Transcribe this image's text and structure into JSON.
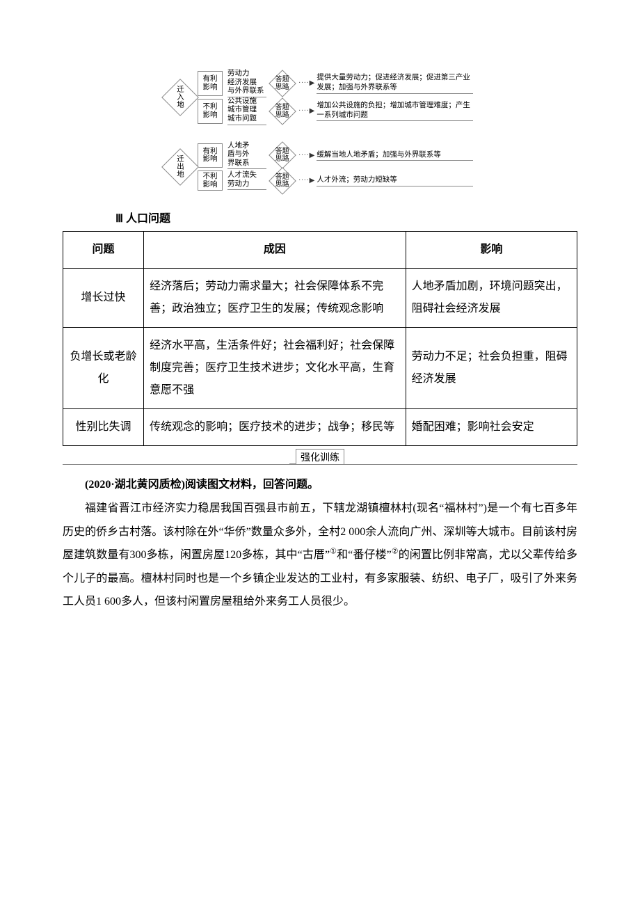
{
  "diagrams": {
    "group1": {
      "diamond": "迁\n入\n地",
      "top": {
        "influenceLabel": "有利\n影响",
        "mid": "劳动力\n经济发展\n与外界联系",
        "thinker": "答题\n思路",
        "result": "提供大量劳动力；促进经济发展；促进第三产业发展；加强与外界联系等"
      },
      "bottom": {
        "influenceLabel": "不利\n影响",
        "mid": "公共设施\n城市管理\n城市问题",
        "thinker": "答题\n思路",
        "result": "增加公共设施的负担；增加城市管理难度；产生一系列城市问题"
      }
    },
    "group2": {
      "diamond": "迁\n出\n地",
      "top": {
        "influenceLabel": "有利\n影响",
        "mid": "人地矛\n盾与外\n界联系",
        "thinker": "答题\n思路",
        "result": "缓解当地人地矛盾；加强与外界联系等"
      },
      "bottom": {
        "influenceLabel": "不利\n影响",
        "mid": "人才流失\n劳动力",
        "thinker": "答题\n思路",
        "result": "人才外流；劳动力短缺等"
      }
    },
    "arrow_dots": "· · · · ·",
    "arrowhead": "▶"
  },
  "section3": {
    "heading": "Ⅲ 人口问题",
    "table": {
      "headers": [
        "问题",
        "成因",
        "影响"
      ],
      "rows": [
        {
          "c1": "增长过快",
          "c2": "经济落后；劳动力需求量大；社会保障体系不完善；政治独立；医疗卫生的发展；传统观念影响",
          "c3": "人地矛盾加剧，环境问题突出，阻碍社会经济发展"
        },
        {
          "c1": "负增长或老龄化",
          "c2": "经济水平高，生活条件好；社会福利好；社会保障制度完善；医疗卫生技术进步；文化水平高，生育意愿不强",
          "c3": "劳动力不足；社会负担重，阻碍经济发展"
        },
        {
          "c1": "性别比失调",
          "c2": "传统观念的影响；医疗技术的进步；战争；移民等",
          "c3": "婚配困难；影响社会安定"
        }
      ]
    }
  },
  "tabMarker": "强化训练",
  "passage": {
    "lead": "(2020·湖北黄冈质检)阅读图文材料，回答问题。",
    "body_part1": "福建省晋江市经济实力稳居我国百强县市前五，下辖龙湖镇檀林村(现名“福林村”)是一个有七百多年历史的侨乡古村落。该村除在外“华侨”数量众多外，全村2 000余人流向广州、深圳等大城市。目前该村房屋建筑数量有300多栋，闲置房屋120多栋，其中“古厝”",
    "sup1": "①",
    "body_mid": "和“番仔楼”",
    "sup2": "②",
    "body_part2": "的闲置比例非常高，尤以父辈传给多个儿子的最高。檀林村同时也是一个乡镇企业发达的工业村，有多家服装、纺织、电子厂，吸引了外来务工人员1 600多人，但该村闲置房屋租给外来务工人员很少。"
  }
}
